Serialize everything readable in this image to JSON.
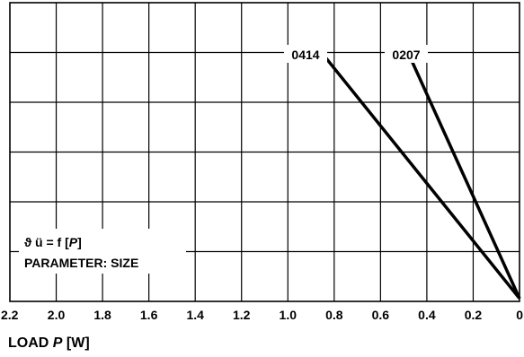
{
  "chart_data": {
    "type": "line",
    "xlabel_prefix": "LOAD ",
    "xlabel_var": "P",
    "xlabel_unit": " [W]",
    "xlim": [
      2.2,
      0
    ],
    "x_ticks": [
      "2.2",
      "2.0",
      "1.8",
      "1.6",
      "1.4",
      "1.2",
      "1.0",
      "0.8",
      "0.6",
      "0.4",
      "0.2",
      "0"
    ],
    "grid": true,
    "series": [
      {
        "name": "0414",
        "x": [
          0.87,
          0
        ],
        "y": [
          0.848,
          0.01
        ]
      },
      {
        "name": "0207",
        "x": [
          0.49,
          0
        ],
        "y": [
          0.848,
          0.01
        ]
      }
    ],
    "annotation": {
      "formula_prefix": "ϑ ü = f [",
      "formula_var": "P",
      "formula_suffix": "]",
      "parameter": "PARAMETER: SIZE"
    }
  }
}
